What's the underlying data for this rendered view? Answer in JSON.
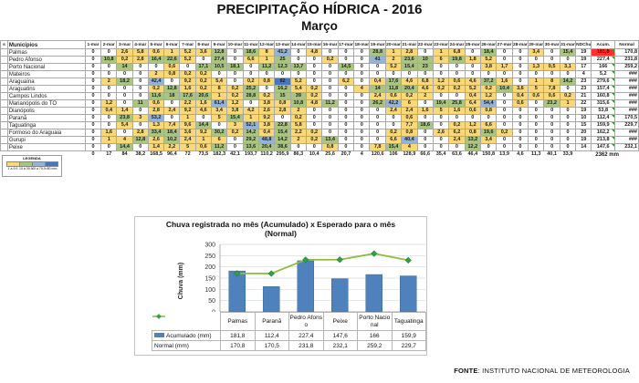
{
  "page": {
    "title": "PRECIPITAÇÃO HÍDRICA - 2016",
    "subtitle": "Março"
  },
  "colors": {
    "scale_1": "#f8d878",
    "scale_2": "#a9c581",
    "scale_3": "#95b3d7",
    "scale_4": "#4576be",
    "acum_alert": "#ff2f2b",
    "bar": "#4f81bd",
    "line": "#8cbf3f",
    "marker": "#31a148"
  },
  "table": {
    "corner_header": "s",
    "name_header": "Municípios",
    "days": [
      "1-mar",
      "2-mar",
      "3-mar",
      "4-mar",
      "5-mar",
      "6-mar",
      "7-mar",
      "8-mar",
      "9-mar",
      "10-mar",
      "11-mar",
      "12-mar",
      "13-mar",
      "14-mar",
      "15-mar",
      "16-mar",
      "17-mar",
      "18-mar",
      "19-mar",
      "20-mar",
      "21-mar",
      "22-mar",
      "23-mar",
      "24-mar",
      "25-mar",
      "26-mar",
      "27-mar",
      "28-mar",
      "29-mar",
      "30-mar",
      "31-mar"
    ],
    "stat_headers": [
      "NDChu",
      "Acum.",
      "Normal"
    ],
    "rows": [
      {
        "name": "Palmas",
        "values": [
          "0",
          "0",
          "2,6",
          "5,8",
          "0,6",
          "1",
          "5,2",
          "3,6",
          "12,8",
          "0",
          "18,6",
          "8",
          "41,2",
          "0",
          "4,8",
          "0",
          "0",
          "0",
          "28,8",
          "1",
          "2,8",
          "0",
          "1",
          "6,8",
          "0",
          "18,4",
          "0",
          "0",
          "3,4",
          "0",
          "15,4"
        ],
        "ndchu": "19",
        "acum": "181,8",
        "acum_red": true,
        "normal": "170,8"
      },
      {
        "name": "Pedro Afonso",
        "values": [
          "0",
          "10,8",
          "0,2",
          "2,8",
          "16,4",
          "22,6",
          "5,2",
          "0",
          "27,4",
          "0",
          "6,6",
          "1",
          "25",
          "0",
          "0",
          "0,2",
          "0",
          "0",
          "41",
          "2",
          "23,6",
          "10",
          "6",
          "19,8",
          "1,8",
          "5,2",
          "0",
          "0",
          "0",
          "0",
          "0"
        ],
        "ndchu": "19",
        "acum": "227,4",
        "acum_red": false,
        "normal": "231,8"
      },
      {
        "name": "Porto Nacional",
        "values": [
          "0",
          "0",
          "14",
          "0",
          "0",
          "0,6",
          "0",
          "17,1",
          "10,5",
          "18,1",
          "0",
          "11,2",
          "12,3",
          "13,7",
          "0",
          "0",
          "14,5",
          "0",
          "0",
          "5,2",
          "15,4",
          "23",
          "0",
          "0",
          "0",
          "3,8",
          "1,7",
          "0",
          "1,3",
          "0,5",
          "3,1"
        ],
        "ndchu": "17",
        "acum": "166",
        "acum_red": false,
        "normal": "259,2"
      },
      {
        "name": "Mateiros",
        "values": [
          "0",
          "0",
          "0",
          "0",
          "2",
          "0,8",
          "0,2",
          "0,2",
          "0",
          "0",
          "0",
          "0",
          "0",
          "0",
          "0",
          "0",
          "0",
          "0",
          "0",
          "0",
          "0",
          "0",
          "0",
          "0",
          "0",
          "0",
          "0",
          "0",
          "0",
          "0",
          "0"
        ],
        "ndchu": "4",
        "acum": "5,2",
        "acum_red": false,
        "normal": "###"
      },
      {
        "name": "Araguaína",
        "values": [
          "0",
          "2",
          "18,2",
          "0",
          "42,4",
          "0",
          "9,2",
          "0,2",
          "5,4",
          "0",
          "0,2",
          "0,8",
          "92",
          "5,2",
          "0",
          "0",
          "6,2",
          "0",
          "0,4",
          "17,6",
          "4,6",
          "6,8",
          "1,2",
          "0,6",
          "4,6",
          "37,2",
          "1,6",
          "0",
          "1",
          "8",
          "14,2"
        ],
        "ndchu": "23",
        "acum": "279,6",
        "acum_red": false,
        "normal": "###"
      },
      {
        "name": "Araguatins",
        "values": [
          "0",
          "0",
          "0",
          "0",
          "0,2",
          "12,8",
          "1,6",
          "0,2",
          "8",
          "0,2",
          "25,2",
          "0",
          "16,2",
          "5,4",
          "0,2",
          "0",
          "0",
          "4",
          "14",
          "11,8",
          "20,4",
          "4,6",
          "0,2",
          "0,2",
          "5,2",
          "0,2",
          "10,4",
          "3,6",
          "5",
          "7,8",
          "0"
        ],
        "ndchu": "23",
        "acum": "157,4",
        "acum_red": false,
        "normal": "###"
      },
      {
        "name": "Campos Lindos",
        "values": [
          "0",
          "0",
          "0",
          "0",
          "11,6",
          "18",
          "17,6",
          "20,6",
          "1",
          "0,2",
          "28,8",
          "0,2",
          "15",
          "39",
          "0,2",
          "0",
          "0",
          "0",
          "2,4",
          "0,6",
          "0,2",
          "2",
          "0",
          "0",
          "0,4",
          "1,2",
          "0",
          "0,4",
          "0,6",
          "0,6",
          "0,2"
        ],
        "ndchu": "21",
        "acum": "160,8",
        "acum_red": false,
        "normal": "###"
      },
      {
        "name": "Marianópolis do TO",
        "values": [
          "0",
          "1,2",
          "0",
          "11",
          "0,6",
          "0",
          "2,2",
          "1,6",
          "61,4",
          "1,2",
          "0",
          "3,8",
          "0,8",
          "10,8",
          "4,8",
          "11,2",
          "0",
          "0",
          "26,2",
          "42,2",
          "6",
          "0",
          "19,4",
          "25,8",
          "6,4",
          "54,4",
          "0",
          "0,6",
          "0",
          "23,2",
          "1"
        ],
        "ndchu": "22",
        "acum": "315,6",
        "acum_red": false,
        "normal": "###"
      },
      {
        "name": "Dianópolis",
        "values": [
          "0",
          "0,4",
          "1,4",
          "0",
          "2,8",
          "2,4",
          "9,2",
          "4,6",
          "3,4",
          "3,8",
          "4,2",
          "2,6",
          "2,8",
          "2",
          "0",
          "0",
          "0",
          "0",
          "0",
          "2,4",
          "2,4",
          "1,6",
          "5",
          "1,6",
          "0,6",
          "0,8",
          "0",
          "0",
          "0",
          "0",
          "0"
        ],
        "ndchu": "19",
        "acum": "53,8",
        "acum_red": false,
        "normal": "###"
      },
      {
        "name": "Paranã",
        "values": [
          "0",
          "0",
          "23,8",
          "3",
          "53,2",
          "0",
          "1",
          "0",
          "5",
          "15,4",
          "1",
          "9,2",
          "0",
          "0,2",
          "0",
          "0",
          "0",
          "0",
          "0",
          "0",
          "0,6",
          "0",
          "0",
          "0",
          "0",
          "0",
          "0",
          "0",
          "0",
          "0",
          "0"
        ],
        "ndchu": "10",
        "acum": "112,4",
        "acum_red": false,
        "normal": "170,5"
      },
      {
        "name": "Taguatinga",
        "values": [
          "0",
          "0",
          "5,4",
          "0",
          "1,3",
          "7,4",
          "9,6",
          "14,4",
          "0",
          "3",
          "52,1",
          "3,8",
          "22,8",
          "5,8",
          "0",
          "0",
          "0",
          "0",
          "0",
          "0",
          "7,7",
          "18,6",
          "0",
          "0,2",
          "1,2",
          "6,6",
          "0",
          "0",
          "0",
          "0",
          "0"
        ],
        "ndchu": "15",
        "acum": "159,9",
        "acum_red": false,
        "normal": "229,7"
      },
      {
        "name": "Formoso do Araguaia",
        "values": [
          "0",
          "1,6",
          "0",
          "2,8",
          "33,4",
          "18,4",
          "3,6",
          "9,2",
          "30,2",
          "0,2",
          "14,2",
          "0,4",
          "15,4",
          "2,2",
          "0,2",
          "0",
          "0",
          "0",
          "0",
          "0,2",
          "0,8",
          "0",
          "2,6",
          "6,2",
          "0,8",
          "19,6",
          "0,2",
          "0",
          "0",
          "0",
          "0"
        ],
        "ndchu": "20",
        "acum": "162,2",
        "acum_red": false,
        "normal": "###"
      },
      {
        "name": "Gurupi",
        "values": [
          "0",
          "1",
          "4",
          "12,8",
          "2,6",
          "10,2",
          "2,4",
          "1",
          "6",
          "0",
          "29,2",
          "48,8",
          "14,2",
          "2",
          "0,2",
          "13,4",
          "0",
          "0",
          "0",
          "6,6",
          "40,4",
          "0",
          "0",
          "2,4",
          "13,2",
          "3,4",
          "0",
          "0",
          "0",
          "0",
          "0"
        ],
        "ndchu": "19",
        "acum": "213,8",
        "acum_red": false,
        "normal": "###"
      },
      {
        "name": "Peixe",
        "values": [
          "0",
          "0",
          "14,4",
          "0",
          "1,4",
          "2,2",
          "5",
          "0,6",
          "11,2",
          "0",
          "13,6",
          "20,4",
          "38,6",
          "0",
          "0",
          "0,8",
          "0",
          "0",
          "7,8",
          "15,4",
          "4",
          "0",
          "0",
          "0",
          "12,2",
          "0",
          "0",
          "0",
          "0",
          "0",
          "0"
        ],
        "ndchu": "14",
        "acum": "147,6",
        "acum_red": false,
        "normal": "232,1"
      }
    ],
    "totals": {
      "values": [
        "0",
        "17",
        "84",
        "38,2",
        "168,5",
        "96,4",
        "72",
        "73,5",
        "182,3",
        "42,1",
        "193,7",
        "110,2",
        "295,9",
        "86,3",
        "10,4",
        "25,6",
        "20,7",
        "4",
        "120,6",
        "106",
        "128,9",
        "66,6",
        "35,4",
        "63,6",
        "46,4",
        "150,8",
        "13,9",
        "4,6",
        "11,3",
        "40,1",
        "33,9"
      ],
      "grand": "2362 mm"
    }
  },
  "legend": {
    "title": "LEGENDA",
    "items": [
      {
        "label": "1 a 9,9",
        "color": "#f8d878"
      },
      {
        "label": "10 a 39,9",
        "color": "#a9c581"
      },
      {
        "label": "40 a 79,9",
        "color": "#95b3d7"
      },
      {
        "label": ">80 mm",
        "color": "#4576be"
      }
    ]
  },
  "chart": {
    "title_line1": "Chuva registrada  no mês (Acumulado)  x Esperado para o mês",
    "title_line2": "(Normal)",
    "acumulado_display": [
      "181,8",
      "112,4",
      "227,4",
      "147,6",
      "166",
      "159,9"
    ],
    "normal_display": [
      "170,8",
      "170,5",
      "231,8",
      "232,1",
      "259,2",
      "229,7"
    ]
  },
  "chart_data": {
    "type": "bar",
    "categories": [
      "Palmas",
      "Paranã",
      "Pedro Afonso",
      "Peixe",
      "Porto Nacional",
      "Taguatinga"
    ],
    "series": [
      {
        "name": "Acumulado (mm)",
        "type": "bar",
        "values": [
          181.8,
          112.4,
          227.4,
          147.6,
          166,
          159.9
        ]
      },
      {
        "name": "Normal (mm)",
        "type": "line",
        "values": [
          170.8,
          170.5,
          231.8,
          232.1,
          259.2,
          229.7
        ]
      }
    ],
    "title": "Chuva registrada no mês (Acumulado) x Esperado para o mês (Normal)",
    "xlabel": "",
    "ylabel": "Chuva (mm)",
    "ylim": [
      0,
      300
    ],
    "ytick_step": 50,
    "grid": true,
    "legend_position": "table-left"
  },
  "footer": {
    "source_label": "FONTE",
    "source_text": ": INSTITUTO NACIONAL DE METEOROLOGIA"
  }
}
